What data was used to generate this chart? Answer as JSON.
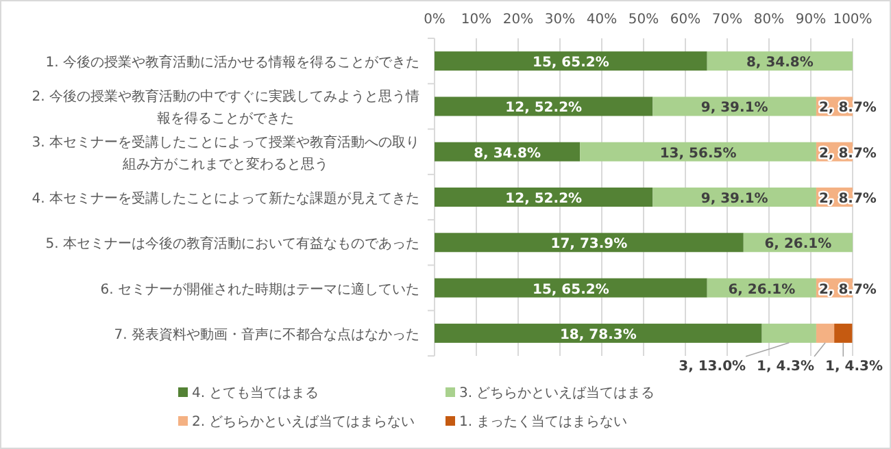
{
  "chart_data": {
    "type": "bar",
    "orientation": "horizontal",
    "stacked": true,
    "categories": [
      "1. 今後の授業や教育活動に活かせる情報を得ることができた",
      "2. 今後の授業や教育活動の中ですぐに実践してみようと思う情報を得ることができた",
      "3. 本セミナーを受講したことによって授業や教育活動への取り組み方がこれまでと変わると思う",
      "4. 本セミナーを受講したことによって新たな課題が見えてきた",
      "5. 本セミナーは今後の教育活動において有益なものであった",
      "6. セミナーが開催された時期はテーマに適していた",
      "7. 発表資料や動画・音声に不都合な点はなかった"
    ],
    "series": [
      {
        "name": "4. とても当てはまる",
        "color": "#548235",
        "values": [
          65.2,
          52.2,
          34.8,
          52.2,
          73.9,
          65.2,
          78.3
        ],
        "value_labels": [
          "15, 65.2%",
          "12, 52.2%",
          "8, 34.8%",
          "12, 52.2%",
          "17, 73.9%",
          "15, 65.2%",
          "18, 78.3%"
        ]
      },
      {
        "name": "3. どちらかといえば当てはまる",
        "color": "#a9d18e",
        "values": [
          34.8,
          39.1,
          56.5,
          39.1,
          26.1,
          26.1,
          13.0
        ],
        "value_labels": [
          "8, 34.8%",
          "9, 39.1%",
          "13, 56.5%",
          "9, 39.1%",
          "6, 26.1%",
          "6, 26.1%",
          "3, 13.0%"
        ]
      },
      {
        "name": "2. どちらかといえば当てはまらない",
        "color": "#f4b183",
        "values": [
          null,
          8.7,
          8.7,
          8.7,
          null,
          8.7,
          4.3
        ],
        "value_labels": [
          null,
          "2, 8.7%",
          "2, 8.7%",
          "2, 8.7%",
          null,
          "2, 8.7%",
          "1, 4.3%"
        ]
      },
      {
        "name": "1. まったく当てはまらない",
        "color": "#c55a11",
        "values": [
          null,
          null,
          null,
          null,
          null,
          null,
          4.3
        ],
        "value_labels": [
          null,
          null,
          null,
          null,
          null,
          null,
          "1, 4.3%"
        ]
      }
    ],
    "xlim": [
      0,
      100
    ],
    "xticks": [
      {
        "value": 0,
        "label": "0%"
      },
      {
        "value": 10,
        "label": "10%"
      },
      {
        "value": 20,
        "label": "20%"
      },
      {
        "value": 30,
        "label": "30%"
      },
      {
        "value": 40,
        "label": "40%"
      },
      {
        "value": 50,
        "label": "50%"
      },
      {
        "value": 60,
        "label": "60%"
      },
      {
        "value": 70,
        "label": "70%"
      },
      {
        "value": 80,
        "label": "80%"
      },
      {
        "value": 90,
        "label": "90%"
      },
      {
        "value": 100,
        "label": "100%"
      }
    ],
    "grid": "x",
    "legend": "bottom"
  }
}
